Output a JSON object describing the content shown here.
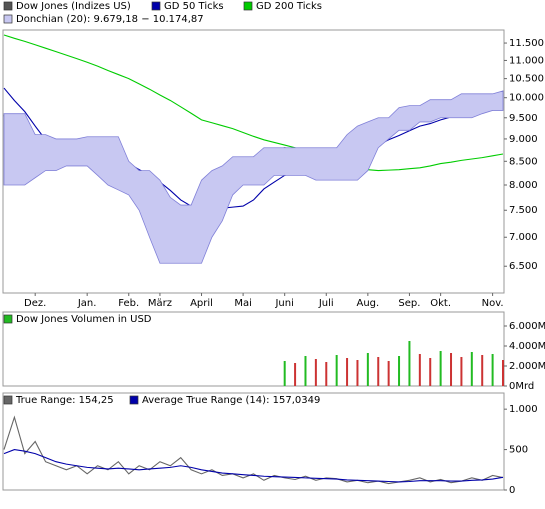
{
  "chart_data": [
    {
      "type": "line",
      "log": true,
      "categories": [
        null,
        null,
        null,
        "Dez.",
        null,
        null,
        null,
        null,
        "Jan.",
        null,
        null,
        null,
        "Feb.",
        null,
        null,
        "März",
        null,
        null,
        null,
        "April",
        null,
        null,
        null,
        "Mai",
        null,
        null,
        null,
        "Juni",
        null,
        null,
        null,
        "Juli",
        null,
        null,
        null,
        "Aug.",
        null,
        null,
        null,
        "Sep.",
        null,
        null,
        "Okt.",
        null,
        null,
        null,
        null,
        "Nov.",
        null
      ],
      "ylim": [
        6070,
        11890
      ],
      "yticks": [
        {
          "value": 6500,
          "label": "6.500"
        },
        {
          "value": 7000,
          "label": "7.000"
        },
        {
          "value": 7500,
          "label": "7.500"
        },
        {
          "value": 8000,
          "label": "8.000"
        },
        {
          "value": 8500,
          "label": "8.500"
        },
        {
          "value": 9000,
          "label": "9.000"
        },
        {
          "value": 9500,
          "label": "9.500"
        },
        {
          "value": 10000,
          "label": "10.000"
        },
        {
          "value": 10500,
          "label": "10.500"
        },
        {
          "value": 11000,
          "label": "11.000"
        },
        {
          "value": 11500,
          "label": "11.500"
        }
      ],
      "series": [
        {
          "name": "Dow Jones (Indizes US)",
          "color": "#555555",
          "values": [
            9565,
            8740,
            8520,
            8630,
            8740,
            8630,
            8690,
            8860,
            8980,
            8520,
            8200,
            7990,
            8090,
            7700,
            7220,
            6680,
            6770,
            7410,
            7580,
            7990,
            8090,
            8260,
            8370,
            8320,
            8520,
            8630,
            8740,
            8800,
            8740,
            8540,
            8370,
            8260,
            8740,
            9080,
            9240,
            9340,
            9410,
            9450,
            9690,
            9740,
            9650,
            9870,
            9890,
            9820,
            10040,
            9990,
            9940,
            9990,
            10170
          ]
        },
        {
          "name": "GD 50 Ticks",
          "color": "#0000aa",
          "values": [
            10250,
            9930,
            9650,
            9300,
            8980,
            8860,
            8740,
            8690,
            8630,
            8570,
            8520,
            8490,
            8450,
            8320,
            8200,
            8060,
            7890,
            7700,
            7580,
            7540,
            7520,
            7540,
            7560,
            7580,
            7700,
            7920,
            8060,
            8200,
            8260,
            8340,
            8450,
            8470,
            8520,
            8570,
            8630,
            8740,
            8860,
            8980,
            9080,
            9190,
            9300,
            9360,
            9450,
            9520,
            9640,
            9690,
            9740,
            9790,
            9850
          ]
        },
        {
          "name": "GD 200 Ticks",
          "color": "#00cc00",
          "values": [
            11740,
            11640,
            11550,
            11450,
            11350,
            11250,
            11150,
            11050,
            10950,
            10840,
            10720,
            10610,
            10500,
            10360,
            10220,
            10070,
            9930,
            9770,
            9610,
            9450,
            9380,
            9310,
            9240,
            9150,
            9060,
            8980,
            8920,
            8860,
            8800,
            8710,
            8610,
            8520,
            8460,
            8400,
            8340,
            8320,
            8300,
            8310,
            8320,
            8340,
            8360,
            8400,
            8450,
            8480,
            8520,
            8550,
            8580,
            8620,
            8660
          ]
        },
        {
          "name": "Donchian (20): 9.679,18 − 10.174,87",
          "color": "#8080d8",
          "fill": "#c8c8f2",
          "upper": [
            9600,
            9600,
            9600,
            9100,
            9100,
            9000,
            9000,
            9000,
            9050,
            9050,
            9050,
            9050,
            8500,
            8300,
            8300,
            8100,
            7750,
            7600,
            7600,
            8100,
            8300,
            8400,
            8600,
            8600,
            8600,
            8800,
            8800,
            8800,
            8800,
            8800,
            8800,
            8800,
            8800,
            9100,
            9300,
            9400,
            9500,
            9500,
            9750,
            9800,
            9800,
            9950,
            9950,
            9950,
            10100,
            10100,
            10100,
            10100,
            10175
          ],
          "lower": [
            8000,
            8000,
            8000,
            8150,
            8300,
            8300,
            8400,
            8400,
            8400,
            8200,
            8000,
            7900,
            7800,
            7500,
            7000,
            6550,
            6550,
            6550,
            6550,
            6550,
            7000,
            7300,
            7800,
            8000,
            8000,
            8000,
            8200,
            8200,
            8200,
            8200,
            8100,
            8100,
            8100,
            8100,
            8100,
            8300,
            8800,
            9000,
            9200,
            9200,
            9400,
            9400,
            9500,
            9500,
            9500,
            9500,
            9600,
            9680,
            9680
          ]
        }
      ]
    },
    {
      "type": "bar",
      "ylim": [
        0,
        7400
      ],
      "yticks": [
        {
          "value": 0,
          "label": "0Mrd"
        },
        {
          "value": 2000,
          "label": "2.000Mrd"
        },
        {
          "value": 4000,
          "label": "4.000Mrd"
        },
        {
          "value": 6000,
          "label": "6.000Mrd"
        }
      ],
      "up_color": "#22bb22",
      "down_color": "#cc3333",
      "series": [
        {
          "name": "Dow Jones Volumen in USD",
          "color": "#22bb22",
          "values": [
            null,
            null,
            null,
            null,
            null,
            null,
            null,
            null,
            null,
            null,
            null,
            null,
            null,
            null,
            null,
            null,
            null,
            null,
            null,
            null,
            null,
            null,
            null,
            null,
            null,
            null,
            null,
            2500,
            2300,
            3000,
            2700,
            2400,
            3100,
            2800,
            2600,
            3300,
            2900,
            2500,
            3000,
            4500,
            3200,
            2800,
            3500,
            3300,
            2900,
            3400,
            3100,
            3200,
            2600
          ]
        }
      ]
    },
    {
      "type": "line",
      "ylim": [
        0,
        1200
      ],
      "yticks": [
        0,
        500,
        {
          "value": 1000,
          "label": "1.000"
        }
      ],
      "series": [
        {
          "name": "True Range: 154,25",
          "color": "#666666",
          "values": [
            500,
            900,
            450,
            600,
            350,
            300,
            250,
            300,
            200,
            300,
            250,
            350,
            200,
            300,
            250,
            350,
            300,
            400,
            250,
            200,
            250,
            180,
            200,
            150,
            200,
            120,
            180,
            150,
            130,
            170,
            120,
            150,
            140,
            100,
            120,
            90,
            110,
            80,
            100,
            120,
            150,
            100,
            130,
            90,
            110,
            150,
            120,
            180,
            154.25
          ]
        },
        {
          "name": "Average True Range (14): 157,0349",
          "color": "#0000aa",
          "values": [
            450,
            500,
            480,
            450,
            400,
            350,
            320,
            300,
            280,
            270,
            260,
            270,
            260,
            250,
            260,
            270,
            280,
            300,
            280,
            250,
            230,
            210,
            200,
            190,
            180,
            170,
            165,
            160,
            155,
            150,
            145,
            140,
            135,
            125,
            120,
            115,
            110,
            105,
            100,
            105,
            115,
            115,
            115,
            110,
            110,
            120,
            125,
            135,
            157.0349
          ]
        }
      ]
    }
  ]
}
